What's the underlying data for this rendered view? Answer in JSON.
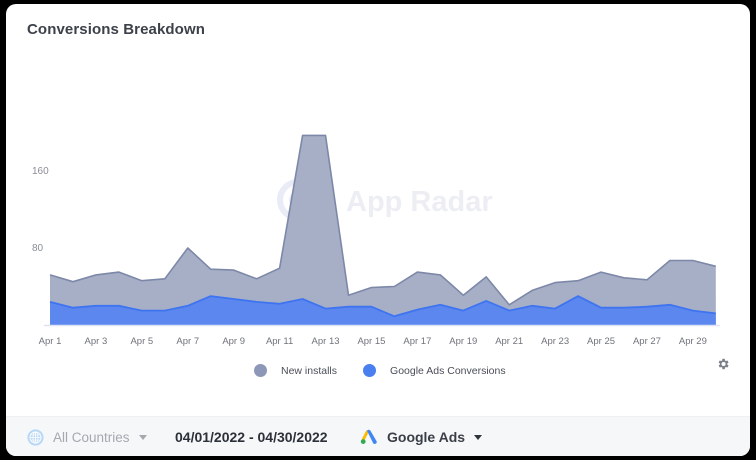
{
  "card": {
    "title": "Conversions Breakdown",
    "watermark": "App Radar"
  },
  "legend": {
    "items": [
      {
        "label": "New installs",
        "color": "#8d98b8"
      },
      {
        "label": "Google Ads Conversions",
        "color": "#4a7ff0"
      }
    ]
  },
  "icons": {
    "settings": "gear-icon",
    "countries": "globe-icon",
    "ads": "google-ads-icon",
    "dropdown": "caret-down-icon"
  },
  "footer": {
    "country_filter": "All Countries",
    "date_range": "04/01/2022 - 04/30/2022",
    "source_filter": "Google Ads"
  },
  "colors": {
    "installs_fill": "#a6afc6",
    "installs_line": "#7d88a8",
    "ads_fill": "#5b87ee",
    "ads_line": "#3f74f0",
    "axis_text": "#8a8e96"
  },
  "chart_data": {
    "type": "area",
    "title": "Conversions Breakdown",
    "xlabel": "",
    "ylabel": "",
    "ylim": [
      0,
      200
    ],
    "yticks": [
      80,
      160
    ],
    "grid": false,
    "legend_position": "bottom",
    "x": [
      "Apr 1",
      "Apr 2",
      "Apr 3",
      "Apr 4",
      "Apr 5",
      "Apr 6",
      "Apr 7",
      "Apr 8",
      "Apr 9",
      "Apr 10",
      "Apr 11",
      "Apr 12",
      "Apr 13",
      "Apr 14",
      "Apr 15",
      "Apr 16",
      "Apr 17",
      "Apr 18",
      "Apr 19",
      "Apr 20",
      "Apr 21",
      "Apr 22",
      "Apr 23",
      "Apr 24",
      "Apr 25",
      "Apr 26",
      "Apr 27",
      "Apr 28",
      "Apr 29",
      "Apr 30"
    ],
    "xtick_labels": [
      "Apr 1",
      "Apr 3",
      "Apr 5",
      "Apr 7",
      "Apr 9",
      "Apr 11",
      "Apr 13",
      "Apr 15",
      "Apr 17",
      "Apr 19",
      "Apr 21",
      "Apr 23",
      "Apr 25",
      "Apr 27",
      "Apr 29"
    ],
    "series": [
      {
        "name": "New installs",
        "color": "#8d98b8",
        "values": [
          52,
          45,
          52,
          55,
          46,
          48,
          80,
          58,
          57,
          48,
          59,
          197,
          197,
          31,
          39,
          40,
          55,
          52,
          31,
          50,
          21,
          36,
          44,
          46,
          55,
          49,
          47,
          67,
          67,
          61
        ]
      },
      {
        "name": "Google Ads Conversions",
        "color": "#4a7ff0",
        "values": [
          24,
          18,
          20,
          20,
          15,
          15,
          20,
          30,
          27,
          24,
          22,
          27,
          17,
          19,
          19,
          9,
          16,
          21,
          15,
          25,
          15,
          20,
          17,
          30,
          18,
          18,
          19,
          21,
          15,
          12
        ]
      }
    ]
  }
}
